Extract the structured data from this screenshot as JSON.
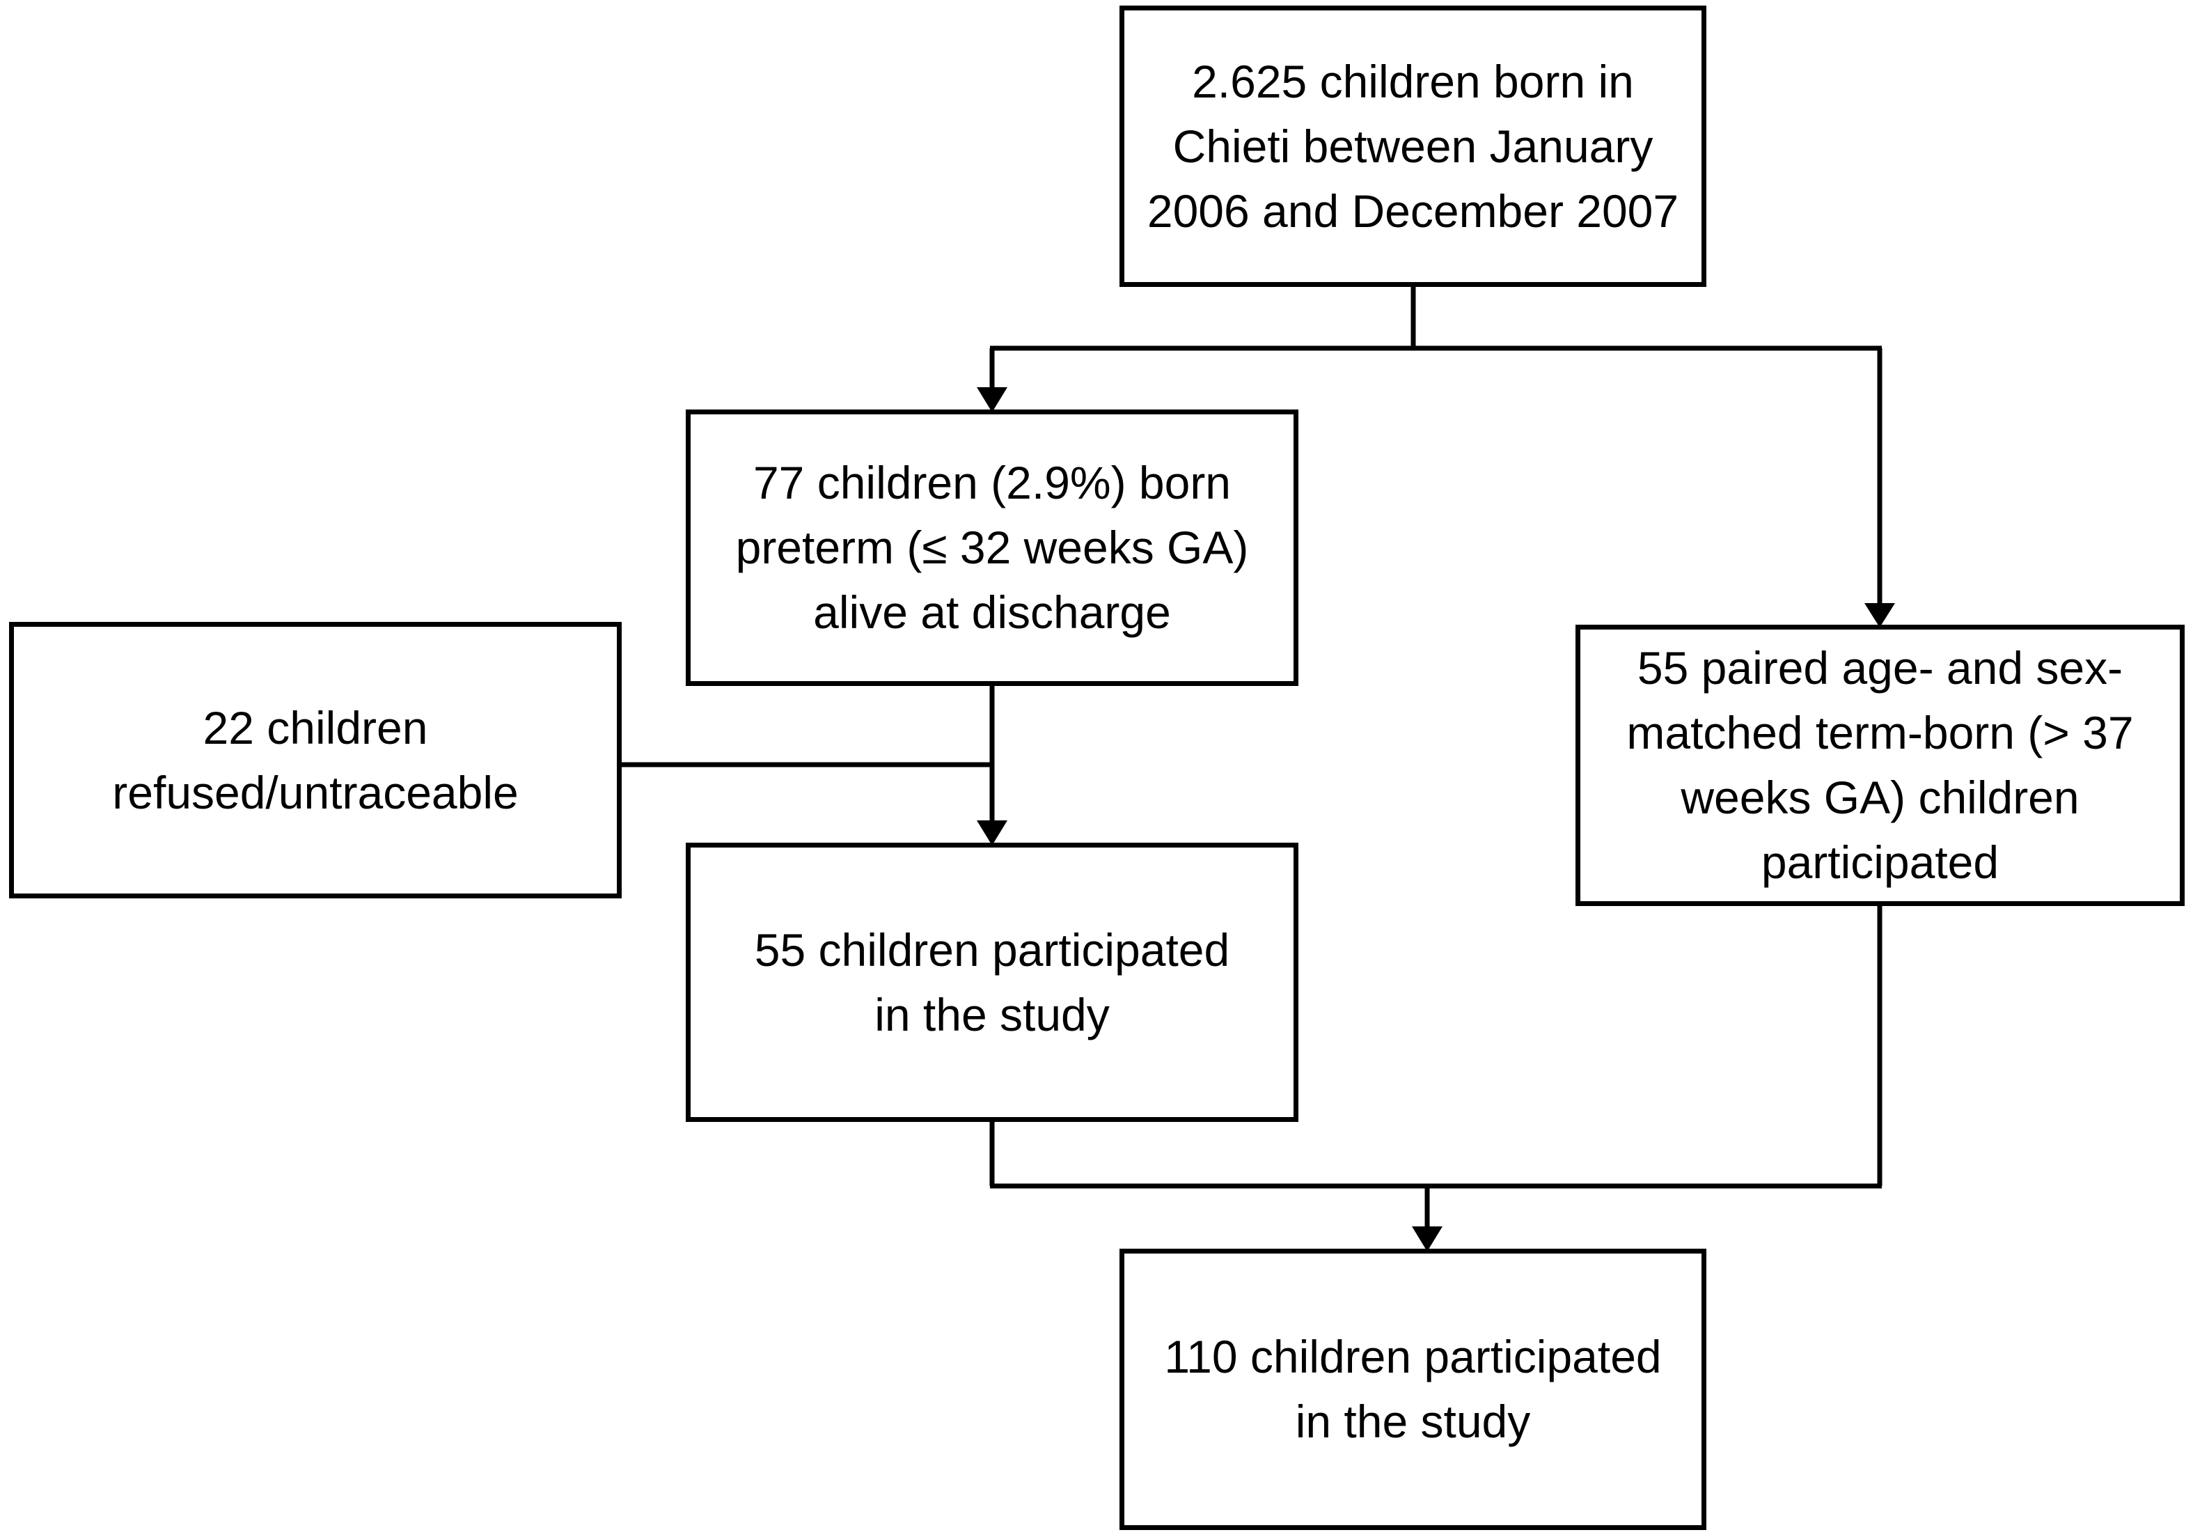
{
  "boxes": {
    "total": {
      "lines": [
        "2.625 children born in",
        "Chieti between January",
        "2006 and December 2007"
      ]
    },
    "preterm": {
      "lines": [
        "77 children (2.9%) born",
        "preterm (≤ 32 weeks GA)",
        "alive at discharge"
      ]
    },
    "excluded": {
      "lines": [
        "22 children",
        "refused/untraceable"
      ]
    },
    "preterm_participated": {
      "lines": [
        "55 children participated",
        "in the study"
      ]
    },
    "term_controls": {
      "lines": [
        "55 paired age- and sex-",
        "matched term-born (> 37",
        "weeks GA) children",
        "participated"
      ]
    },
    "final": {
      "lines": [
        "110 children participated",
        "in the study"
      ]
    }
  },
  "colors": {
    "stroke": "#000000",
    "background": "#ffffff",
    "text": "#000000"
  }
}
